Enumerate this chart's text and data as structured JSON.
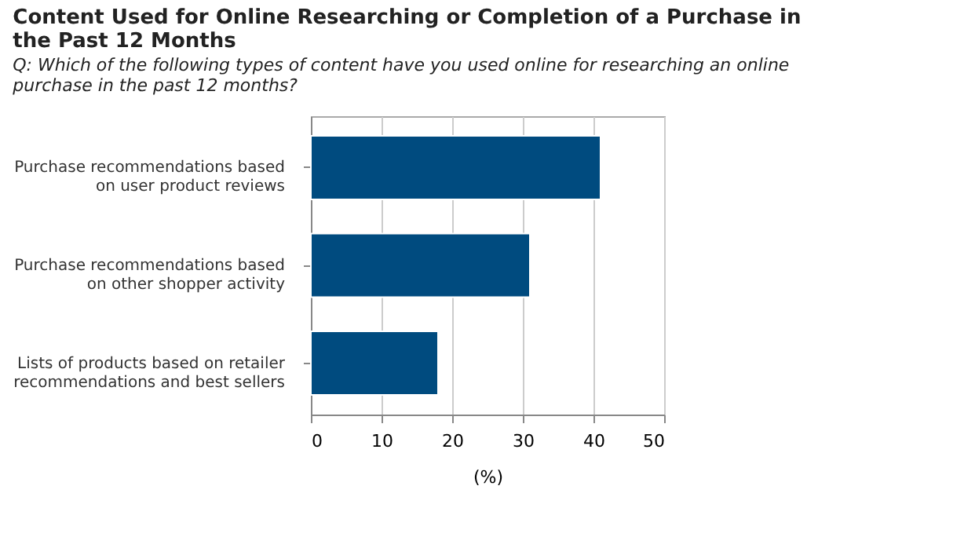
{
  "chart_data": {
    "type": "bar",
    "orientation": "horizontal",
    "title": "Content Used for Online Researching or Completion of a Purchase in the Past 12 Months",
    "subtitle": "Q: Which of the following types of content have you used online for researching an online purchase in the past 12 months?",
    "categories": [
      "Purchase recommendations based\non user product reviews",
      "Purchase recommendations based\non other shopper activity",
      "Lists of products based on retailer\nrecommendations and best sellers"
    ],
    "values": [
      41,
      31,
      18
    ],
    "color": "#004b7f",
    "xlim": [
      0,
      50
    ],
    "xticks": [
      0,
      10,
      20,
      30,
      40,
      50
    ],
    "xlabel": "(%)",
    "grid": "x"
  }
}
